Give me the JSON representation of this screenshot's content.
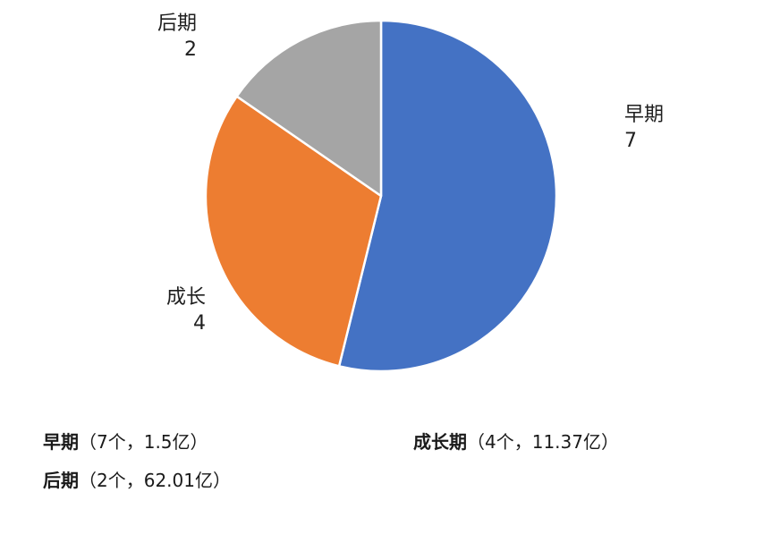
{
  "chart_data": {
    "type": "pie",
    "slices": [
      {
        "label": "早期",
        "value": 7,
        "color": "#4472C4"
      },
      {
        "label": "成长",
        "value": 4,
        "color": "#ED7D31"
      },
      {
        "label": "后期",
        "value": 2,
        "color": "#A5A5A5"
      }
    ],
    "start_angle_deg": 0,
    "direction": "clockwise",
    "slice_border_color": "#ffffff"
  },
  "summary": [
    {
      "stage": "早期",
      "detail": "（7个，1.5亿）"
    },
    {
      "stage": "成长期",
      "detail": "（4个，11.37亿）"
    },
    {
      "stage": "后期",
      "detail": "（2个，62.01亿）"
    }
  ]
}
